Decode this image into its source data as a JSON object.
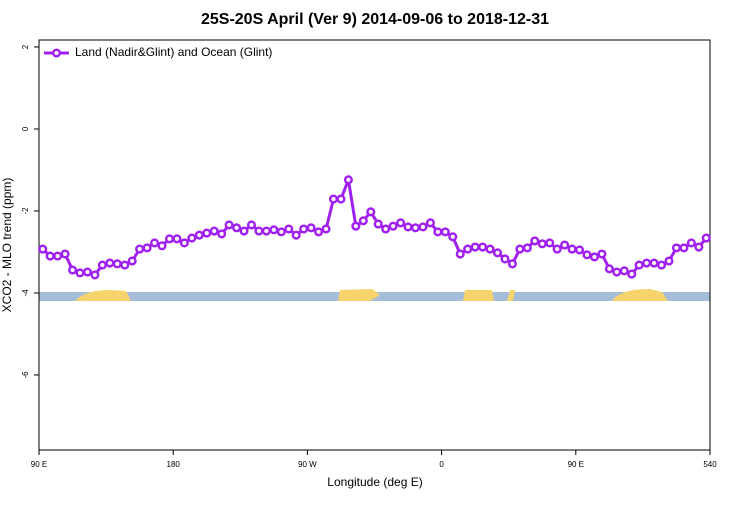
{
  "chart_data": {
    "type": "line",
    "title": "25S-20S April (Ver 9)   2014-09-06 to 2018-12-31",
    "x_label": "Longitude (deg E)",
    "y_label": "XCO2 - MLO trend (ppm)",
    "x": [
      92.5,
      97.5,
      102.5,
      107.5,
      112.5,
      117.5,
      122.5,
      127.5,
      132.5,
      137.5,
      142.5,
      147.5,
      152.5,
      157.5,
      162.5,
      167.5,
      172.5,
      177.5,
      182.5,
      187.5,
      192.5,
      197.5,
      202.5,
      207.5,
      212.5,
      217.5,
      222.5,
      227.5,
      232.5,
      237.5,
      242.5,
      247.5,
      252.5,
      257.5,
      262.5,
      267.5,
      272.5,
      277.5,
      282.5,
      287.5,
      292.5,
      297.5,
      302.5,
      307.5,
      312.5,
      317.5,
      322.5,
      327.5,
      332.5,
      337.5,
      342.5,
      347.5,
      352.5,
      357.5,
      362.5,
      367.5,
      372.5,
      377.5,
      382.5,
      387.5,
      392.5,
      397.5,
      402.5,
      407.5,
      412.5,
      417.5,
      422.5,
      427.5,
      432.5,
      437.5,
      442.5,
      447.5,
      452.5,
      457.5,
      462.5,
      467.5,
      472.5,
      477.5,
      482.5,
      487.5,
      492.5,
      497.5,
      502.5,
      507.5,
      512.5,
      517.5,
      522.5,
      527.5,
      532.5,
      537.5
    ],
    "series": [
      {
        "name": "Land (Nadir&Glint) and Ocean (Glint)",
        "color": "#a020f0",
        "values": [
          -2.93,
          -3.1,
          -3.1,
          -3.05,
          -3.44,
          -3.51,
          -3.49,
          -3.56,
          -3.32,
          -3.27,
          -3.29,
          -3.32,
          -3.22,
          -2.93,
          -2.9,
          -2.78,
          -2.85,
          -2.68,
          -2.68,
          -2.78,
          -2.66,
          -2.59,
          -2.54,
          -2.49,
          -2.56,
          -2.34,
          -2.41,
          -2.49,
          -2.34,
          -2.49,
          -2.49,
          -2.46,
          -2.51,
          -2.44,
          -2.59,
          -2.44,
          -2.41,
          -2.51,
          -2.44,
          -1.71,
          -1.71,
          -1.24,
          -2.37,
          -2.24,
          -2.02,
          -2.32,
          -2.44,
          -2.37,
          -2.29,
          -2.39,
          -2.41,
          -2.39,
          -2.29,
          -2.51,
          -2.51,
          -2.63,
          -3.05,
          -2.93,
          -2.88,
          -2.88,
          -2.93,
          -3.02,
          -3.17,
          -3.29,
          -2.93,
          -2.9,
          -2.73,
          -2.8,
          -2.78,
          -2.93,
          -2.83,
          -2.93,
          -2.95,
          -3.07,
          -3.12,
          -3.05,
          -3.41,
          -3.49,
          -3.46,
          -3.54,
          -3.32,
          -3.27,
          -3.27,
          -3.32,
          -3.22,
          -2.9,
          -2.9,
          -2.78,
          -2.88,
          -2.66
        ]
      }
    ],
    "xlim": [
      90,
      540
    ],
    "xticks": [
      {
        "value": 90,
        "label": "90 E"
      },
      180,
      {
        "value": 270,
        "label": "90 W"
      },
      {
        "value": 360,
        "label": "0"
      },
      {
        "value": 450,
        "label": "90 E"
      },
      540
    ],
    "ylim": [
      -7.83,
      2.17
    ],
    "yticks": [
      2,
      0,
      -2,
      -4,
      -6
    ],
    "legend": "top-left"
  }
}
